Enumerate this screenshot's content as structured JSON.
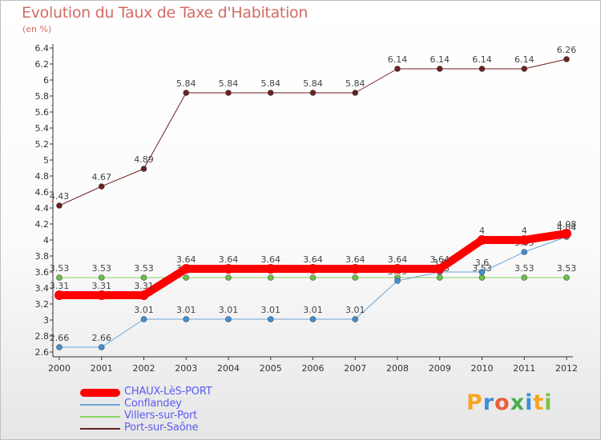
{
  "title": "Evolution du Taux de Taxe d'Habitation",
  "subtitle": "(en %)",
  "brand": {
    "letters": [
      "P",
      "r",
      "o",
      "x",
      "i",
      "t",
      "i"
    ],
    "colors": [
      "#f5a623",
      "#3a8fd9",
      "#ea5e3c",
      "#4cae4c",
      "#3a8fd9",
      "#f5a623",
      "#7dc242"
    ]
  },
  "chart_data": {
    "type": "line",
    "title": "Evolution du Taux de Taxe d'Habitation",
    "ylabel": "(en %)",
    "xlabel": "",
    "ylim": [
      2.6,
      6.4
    ],
    "ytick_step": 0.2,
    "grid": false,
    "legend_position": "bottom-left",
    "x": [
      "2000",
      "2001",
      "2002",
      "2003",
      "2004",
      "2005",
      "2006",
      "2007",
      "2008",
      "2009",
      "2010",
      "2011",
      "2012"
    ],
    "series": [
      {
        "name": "Port-sur-Saône",
        "color": "#6b1f1f",
        "point_color": "#6b1f1f",
        "width": 1,
        "values": [
          4.43,
          4.67,
          4.89,
          5.84,
          5.84,
          5.84,
          5.84,
          5.84,
          6.14,
          6.14,
          6.14,
          6.14,
          6.26
        ],
        "labels": [
          "4.43",
          "4.67",
          "4.89",
          "5.84",
          "5.84",
          "5.84",
          "5.84",
          "5.84",
          "6.14",
          "6.14",
          "6.14",
          "6.14",
          "6.26"
        ]
      },
      {
        "name": "Villers-sur-Port",
        "color": "#88d462",
        "point_color": "#6cc04a",
        "width": 1,
        "values": [
          3.53,
          3.53,
          3.53,
          3.53,
          3.53,
          3.53,
          3.53,
          3.53,
          3.53,
          3.53,
          3.53,
          3.53,
          3.53
        ],
        "labels": [
          "3.53",
          "3.53",
          "3.53",
          "3.53",
          "3.53",
          "3.53",
          "3.53",
          "3.53",
          "3.53",
          "3.53",
          "3.53",
          "3.53",
          "3.53"
        ]
      },
      {
        "name": "Conflandey",
        "color": "#6aa6d8",
        "point_color": "#3d8fd6",
        "width": 1,
        "values": [
          2.66,
          2.66,
          3.01,
          3.01,
          3.01,
          3.01,
          3.01,
          3.01,
          3.49,
          3.6,
          3.6,
          3.85,
          4.04
        ],
        "labels": [
          "2.66",
          "2.66",
          "3.01",
          "3.01",
          "3.01",
          "3.01",
          "3.01",
          "3.01",
          "3.49",
          "3.6",
          "3.6",
          "3.85",
          "4.04"
        ]
      },
      {
        "name": "CHAUX-LèS-PORT",
        "color": "#ff0000",
        "point_color": "#ff0000",
        "width": 10,
        "values": [
          3.31,
          3.31,
          3.31,
          3.64,
          3.64,
          3.64,
          3.64,
          3.64,
          3.64,
          3.64,
          4.0,
          4.0,
          4.08
        ],
        "labels": [
          "3.31",
          "3.31",
          "3.31",
          "3.64",
          "3.64",
          "3.64",
          "3.64",
          "3.64",
          "3.64",
          "3.64",
          "4",
          "4",
          "4.08"
        ]
      }
    ]
  },
  "legend": [
    {
      "name": "CHAUX-LèS-PORT",
      "color": "#ff0000",
      "width": 10
    },
    {
      "name": "Conflandey",
      "color": "#6aa6d8",
      "width": 2
    },
    {
      "name": "Villers-sur-Port",
      "color": "#88d462",
      "width": 2
    },
    {
      "name": "Port-sur-Saône",
      "color": "#6b1f1f",
      "width": 2
    }
  ]
}
